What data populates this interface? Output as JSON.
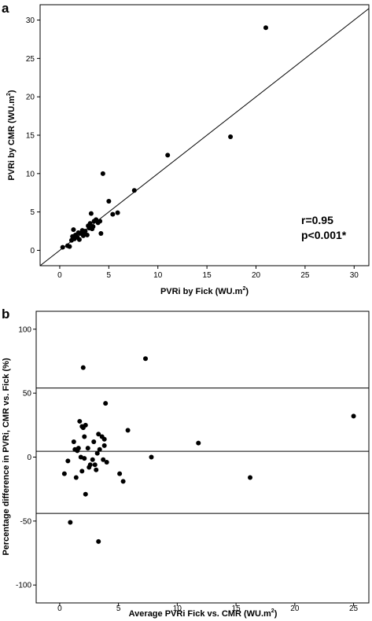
{
  "chart_data": [
    {
      "panel_label": "a",
      "type": "scatter",
      "xlabel": "PVRi by Fick (WU.m",
      "ylabel": "PVRi by CMR (WU.m",
      "unit_superscript": "2",
      "xlim": [
        -2,
        31.5
      ],
      "ylim": [
        -2,
        32
      ],
      "xticks": [
        0,
        5,
        10,
        15,
        20,
        25,
        30
      ],
      "yticks": [
        0,
        5,
        10,
        15,
        20,
        25,
        30
      ],
      "identity_line": true,
      "annotations": [
        "r=0.95",
        "p<0.001*"
      ],
      "points": [
        [
          0.3,
          0.4
        ],
        [
          0.8,
          0.6
        ],
        [
          1.0,
          0.5
        ],
        [
          1.2,
          1.3
        ],
        [
          1.3,
          1.8
        ],
        [
          1.4,
          2.7
        ],
        [
          1.5,
          1.5
        ],
        [
          1.6,
          2.0
        ],
        [
          1.8,
          1.7
        ],
        [
          1.9,
          2.3
        ],
        [
          2.0,
          1.4
        ],
        [
          2.1,
          2.2
        ],
        [
          2.3,
          2.6
        ],
        [
          2.4,
          1.9
        ],
        [
          2.5,
          2.1
        ],
        [
          2.6,
          2.5
        ],
        [
          2.8,
          2.0
        ],
        [
          2.9,
          3.2
        ],
        [
          3.0,
          2.9
        ],
        [
          3.1,
          3.5
        ],
        [
          3.2,
          4.8
        ],
        [
          3.3,
          2.8
        ],
        [
          3.4,
          3.1
        ],
        [
          3.5,
          3.8
        ],
        [
          3.7,
          4.0
        ],
        [
          3.9,
          3.6
        ],
        [
          4.1,
          3.8
        ],
        [
          4.2,
          2.2
        ],
        [
          4.4,
          10.0
        ],
        [
          5.0,
          6.4
        ],
        [
          5.4,
          4.7
        ],
        [
          5.9,
          4.9
        ],
        [
          7.6,
          7.8
        ],
        [
          11.0,
          12.4
        ],
        [
          17.4,
          14.8
        ],
        [
          21.0,
          29.0
        ]
      ]
    },
    {
      "panel_label": "b",
      "type": "scatter",
      "xlabel": "Average PVRi Fick vs. CMR  (WU.m",
      "ylabel": "Percentage difference in PVRi, CMR vs. Fick (%)",
      "unit_superscript": "2",
      "xlim": [
        -2,
        26.3
      ],
      "ylim": [
        -114,
        114
      ],
      "xticks": [
        0,
        5,
        10,
        15,
        20,
        25
      ],
      "yticks": [
        -100,
        -50,
        0,
        50,
        100
      ],
      "hlines": [
        54,
        4.5,
        -44
      ],
      "points": [
        [
          0.4,
          -13
        ],
        [
          0.7,
          -3
        ],
        [
          0.9,
          -51
        ],
        [
          1.2,
          12
        ],
        [
          1.3,
          6
        ],
        [
          1.4,
          -16
        ],
        [
          1.5,
          5
        ],
        [
          1.6,
          7
        ],
        [
          1.7,
          28
        ],
        [
          1.8,
          0
        ],
        [
          1.9,
          -11
        ],
        [
          1.9,
          24
        ],
        [
          2.0,
          23
        ],
        [
          2.0,
          70
        ],
        [
          2.1,
          -1
        ],
        [
          2.1,
          16
        ],
        [
          2.2,
          25
        ],
        [
          2.2,
          -29
        ],
        [
          2.4,
          7
        ],
        [
          2.5,
          -8
        ],
        [
          2.6,
          -6
        ],
        [
          2.8,
          -2
        ],
        [
          2.9,
          12
        ],
        [
          3.0,
          -6
        ],
        [
          3.1,
          -10
        ],
        [
          3.2,
          3
        ],
        [
          3.3,
          18
        ],
        [
          3.3,
          -66
        ],
        [
          3.4,
          6
        ],
        [
          3.6,
          16
        ],
        [
          3.7,
          -2
        ],
        [
          3.8,
          14
        ],
        [
          3.8,
          9
        ],
        [
          3.9,
          42
        ],
        [
          4.0,
          -4
        ],
        [
          5.1,
          -13
        ],
        [
          5.4,
          -19
        ],
        [
          5.8,
          21
        ],
        [
          7.3,
          77
        ],
        [
          7.8,
          0
        ],
        [
          11.8,
          11
        ],
        [
          16.2,
          -16
        ],
        [
          25.0,
          32
        ]
      ]
    }
  ]
}
